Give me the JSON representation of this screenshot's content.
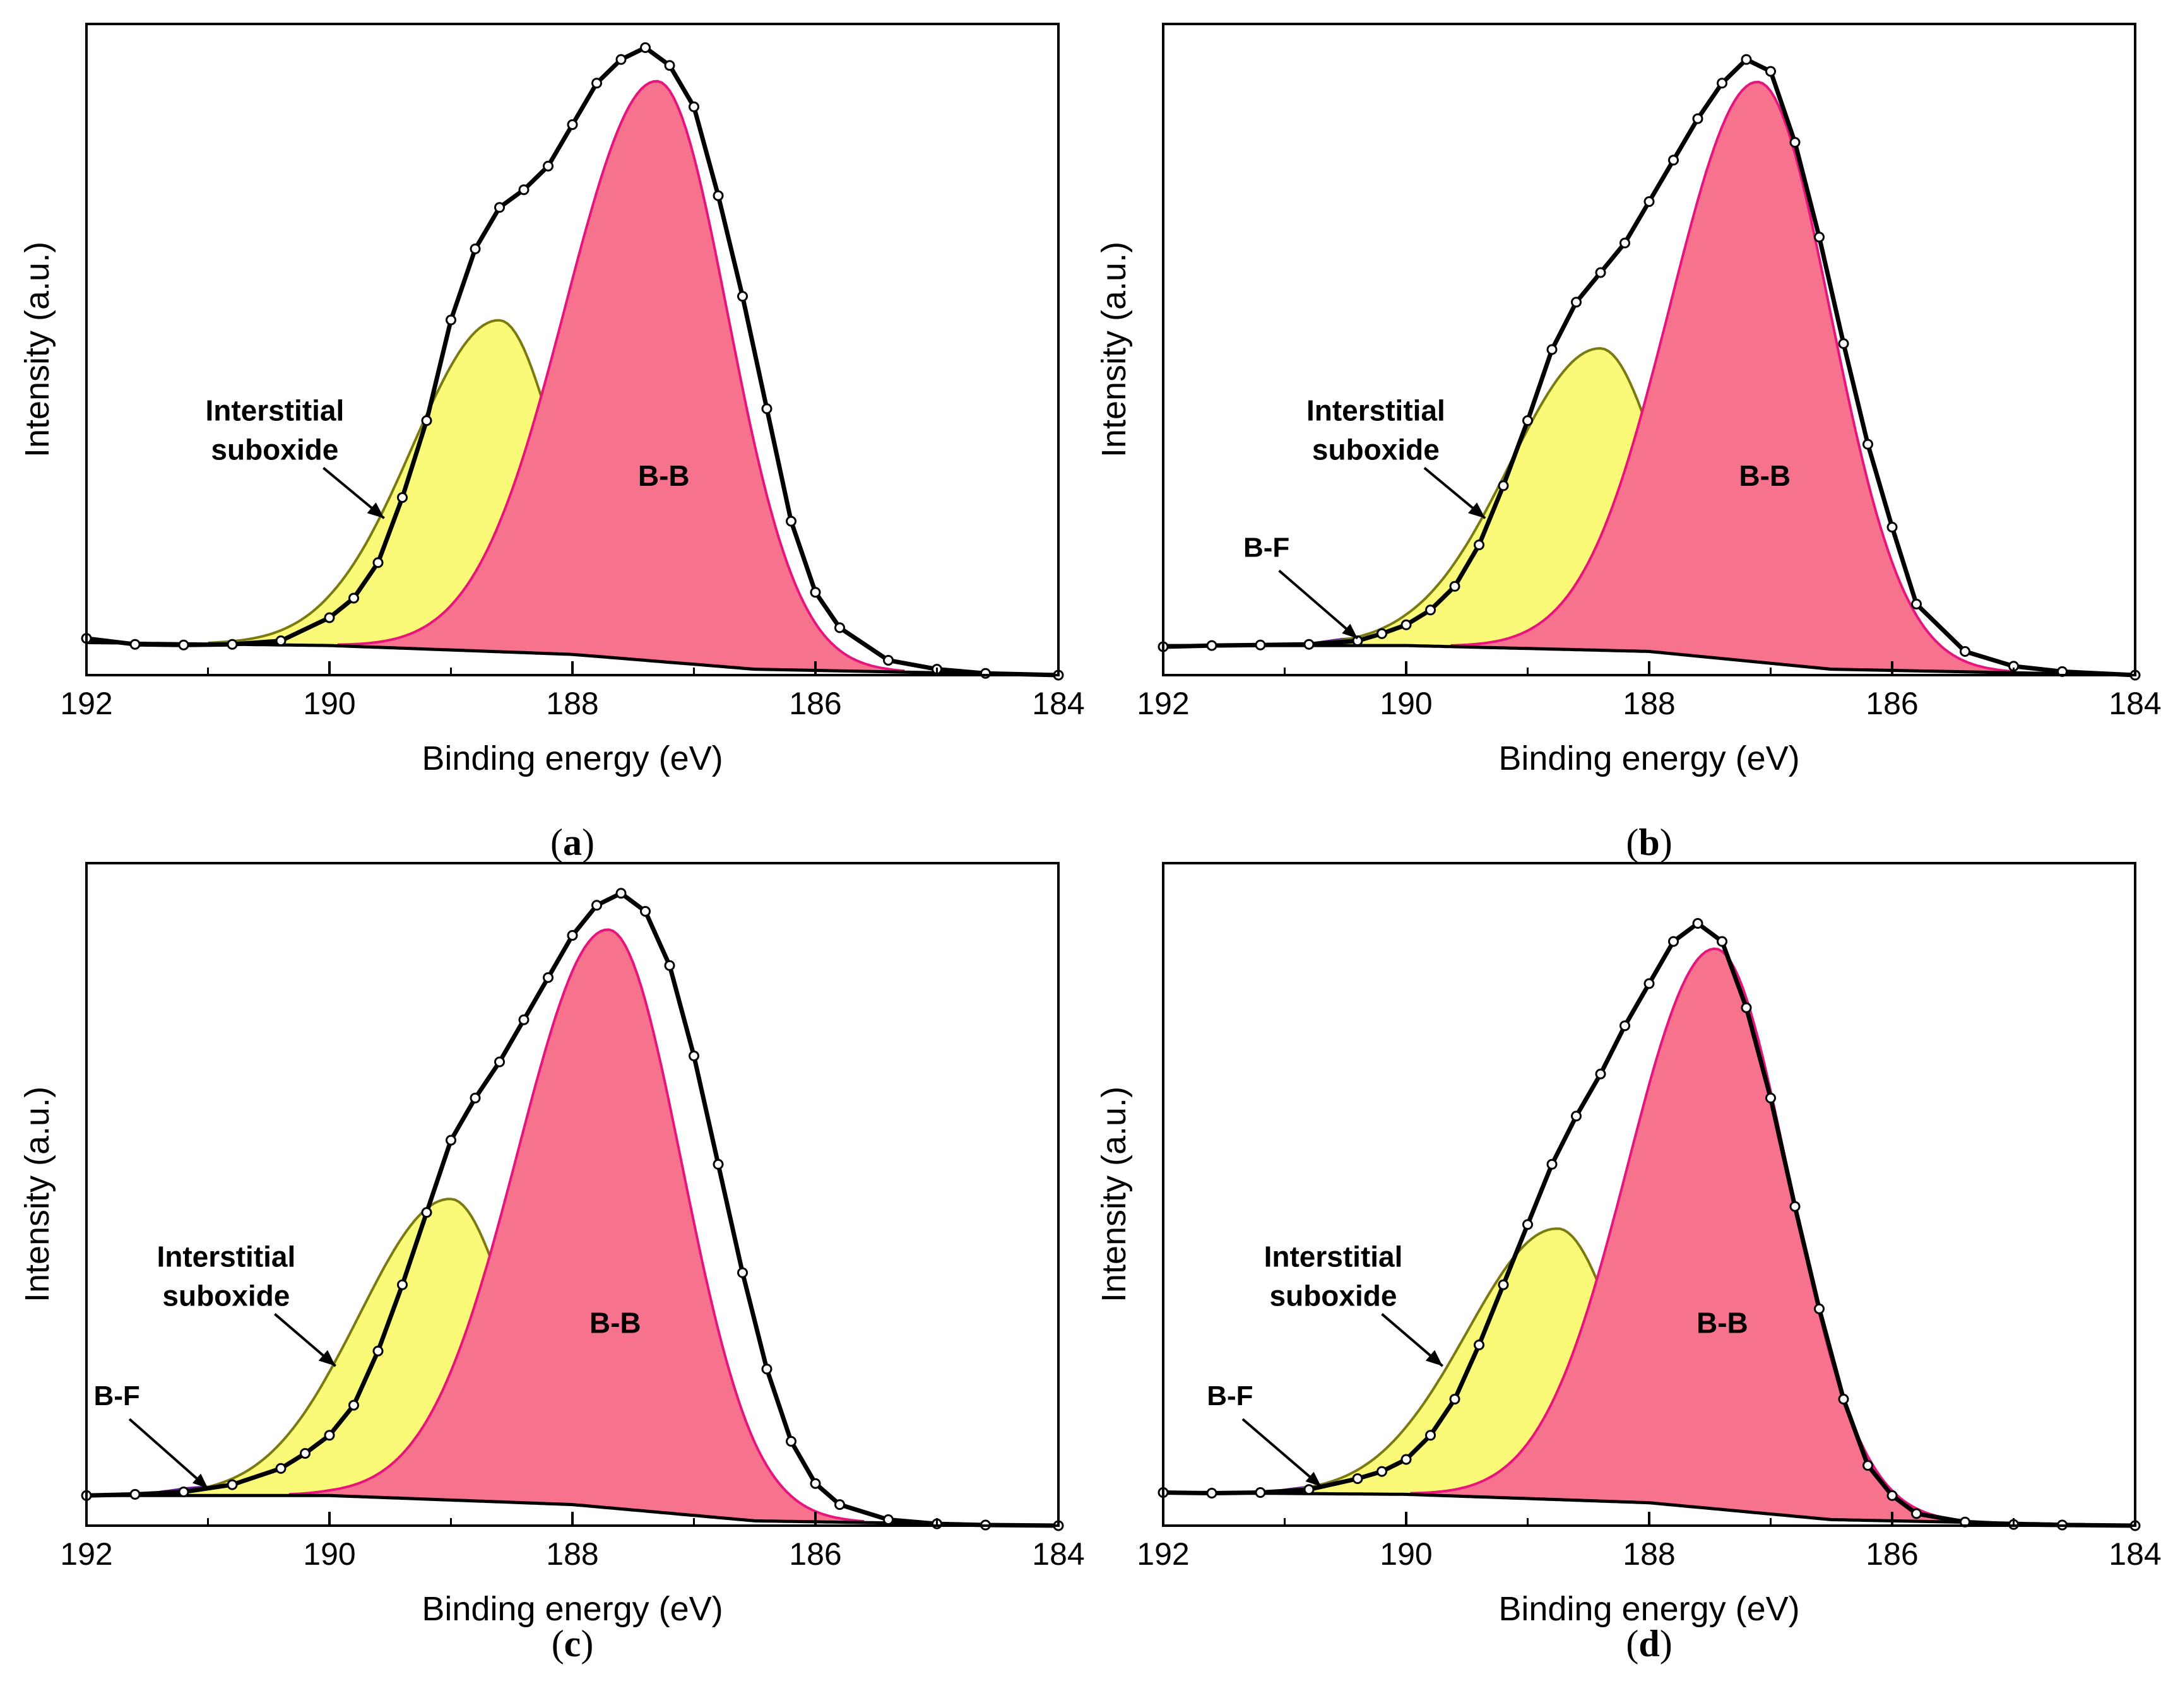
{
  "figure": {
    "colors": {
      "envelope": "#000000",
      "marker_fill": "#ffffff",
      "suboxide_fill": "#fafa78",
      "suboxide_line": "#7a7a10",
      "bb_fill": "#f7728c",
      "bb_line": "#e6157e",
      "bf_fill": "#6a1b9a",
      "axis": "#000000"
    }
  },
  "chart_data": [
    {
      "panel": "(a)",
      "caption_letter": "a",
      "type": "area",
      "title": "",
      "xlabel": "Binding energy (eV)",
      "ylabel": "Intensity (a.u.)",
      "xlim": [
        192,
        184
      ],
      "ylim": [
        0,
        1.1
      ],
      "xticks": [
        "192",
        "190",
        "188",
        "186",
        "184"
      ],
      "annotations": {
        "suboxide_label": [
          "Interstitial",
          "suboxide"
        ],
        "bb_label": "B-B",
        "bf_label": ""
      },
      "background": {
        "x": [
          192,
          190,
          188,
          186.5,
          184
        ],
        "y": [
          0.055,
          0.05,
          0.035,
          0.01,
          0.0
        ]
      },
      "series": [
        {
          "name": "Interstitial suboxide",
          "center": 188.6,
          "amplitude": 0.56,
          "sigma_left": 0.72,
          "sigma_right": 0.48
        },
        {
          "name": "B-B",
          "center": 187.3,
          "amplitude": 0.98,
          "sigma_left": 0.75,
          "sigma_right": 0.58
        }
      ],
      "measured": {
        "x": [
          192.0,
          191.6,
          191.2,
          190.8,
          190.4,
          190.0,
          189.8,
          189.6,
          189.4,
          189.2,
          189.0,
          188.8,
          188.6,
          188.4,
          188.2,
          188.0,
          187.8,
          187.6,
          187.4,
          187.2,
          187.0,
          186.8,
          186.6,
          186.4,
          186.2,
          186.0,
          185.8,
          185.4,
          185.0,
          184.6,
          184.0
        ],
        "y": [
          0.062,
          0.052,
          0.051,
          0.052,
          0.058,
          0.097,
          0.13,
          0.19,
          0.3,
          0.43,
          0.6,
          0.72,
          0.79,
          0.82,
          0.86,
          0.93,
          1.0,
          1.04,
          1.06,
          1.03,
          0.96,
          0.81,
          0.64,
          0.45,
          0.26,
          0.14,
          0.08,
          0.025,
          0.01,
          0.003,
          0.0
        ]
      }
    },
    {
      "panel": "(b)",
      "caption_letter": "b",
      "type": "area",
      "title": "",
      "xlabel": "Binding energy (eV)",
      "ylabel": "Intensity (a.u.)",
      "xlim": [
        192,
        184
      ],
      "ylim": [
        0,
        1.1
      ],
      "xticks": [
        "192",
        "190",
        "188",
        "186",
        "184"
      ],
      "annotations": {
        "suboxide_label": [
          "Interstitial",
          "suboxide"
        ],
        "bb_label": "B-B",
        "bf_label": "B-F"
      },
      "background": {
        "x": [
          192,
          190,
          188,
          186.5,
          184
        ],
        "y": [
          0.05,
          0.05,
          0.04,
          0.01,
          0.0
        ]
      },
      "series": [
        {
          "name": "Interstitial suboxide",
          "center": 188.4,
          "amplitude": 0.51,
          "sigma_left": 0.75,
          "sigma_right": 0.5
        },
        {
          "name": "B-B",
          "center": 187.1,
          "amplitude": 0.98,
          "sigma_left": 0.72,
          "sigma_right": 0.6
        },
        {
          "name": "B-F",
          "center": 190.4,
          "amplitude": 0.012,
          "sigma_left": 0.25,
          "sigma_right": 0.25
        }
      ],
      "measured": {
        "x": [
          192.0,
          191.6,
          191.2,
          190.8,
          190.4,
          190.2,
          190.0,
          189.8,
          189.6,
          189.4,
          189.2,
          189.0,
          188.8,
          188.6,
          188.4,
          188.2,
          188.0,
          187.8,
          187.6,
          187.4,
          187.2,
          187.0,
          186.8,
          186.6,
          186.4,
          186.2,
          186.0,
          185.8,
          185.4,
          185.0,
          184.6,
          184.0
        ],
        "y": [
          0.048,
          0.05,
          0.051,
          0.052,
          0.058,
          0.07,
          0.085,
          0.11,
          0.15,
          0.22,
          0.32,
          0.43,
          0.55,
          0.63,
          0.68,
          0.73,
          0.8,
          0.87,
          0.94,
          1.0,
          1.04,
          1.02,
          0.9,
          0.74,
          0.56,
          0.39,
          0.25,
          0.12,
          0.04,
          0.015,
          0.006,
          0.0
        ]
      }
    },
    {
      "panel": "(c)",
      "caption_letter": "c",
      "type": "area",
      "title": "",
      "xlabel": "Binding energy (eV)",
      "ylabel": "Intensity (a.u.)",
      "xlim": [
        192,
        184
      ],
      "ylim": [
        0,
        1.1
      ],
      "xticks": [
        "192",
        "190",
        "188",
        "186",
        "184"
      ],
      "annotations": {
        "suboxide_label": [
          "Interstitial",
          "suboxide"
        ],
        "bb_label": "B-B",
        "bf_label": "B-F"
      },
      "background": {
        "x": [
          192,
          190,
          188,
          186.5,
          184
        ],
        "y": [
          0.05,
          0.05,
          0.035,
          0.008,
          0.0
        ]
      },
      "series": [
        {
          "name": "Interstitial suboxide",
          "center": 189.0,
          "amplitude": 0.5,
          "sigma_left": 0.75,
          "sigma_right": 0.5
        },
        {
          "name": "B-B",
          "center": 187.7,
          "amplitude": 0.96,
          "sigma_left": 0.75,
          "sigma_right": 0.6
        },
        {
          "name": "B-F",
          "center": 191.0,
          "amplitude": 0.014,
          "sigma_left": 0.3,
          "sigma_right": 0.3
        }
      ],
      "measured": {
        "x": [
          192.0,
          191.6,
          191.2,
          190.8,
          190.4,
          190.2,
          190.0,
          189.8,
          189.6,
          189.4,
          189.2,
          189.0,
          188.8,
          188.6,
          188.4,
          188.2,
          188.0,
          187.8,
          187.6,
          187.4,
          187.2,
          187.0,
          186.8,
          186.6,
          186.4,
          186.2,
          186.0,
          185.8,
          185.4,
          185.0,
          184.6,
          184.0
        ],
        "y": [
          0.05,
          0.052,
          0.056,
          0.068,
          0.095,
          0.12,
          0.15,
          0.2,
          0.29,
          0.4,
          0.52,
          0.64,
          0.71,
          0.77,
          0.84,
          0.91,
          0.98,
          1.03,
          1.05,
          1.02,
          0.93,
          0.78,
          0.6,
          0.42,
          0.26,
          0.14,
          0.07,
          0.035,
          0.01,
          0.003,
          0.001,
          0.0
        ]
      }
    },
    {
      "panel": "(d)",
      "caption_letter": "d",
      "type": "area",
      "title": "",
      "xlabel": "Binding energy (eV)",
      "ylabel": "Intensity (a.u.)",
      "xlim": [
        192,
        184
      ],
      "ylim": [
        0,
        1.1
      ],
      "xticks": [
        "192",
        "190",
        "188",
        "186",
        "184"
      ],
      "annotations": {
        "suboxide_label": [
          "Interstitial",
          "suboxide"
        ],
        "bb_label": "B-B",
        "bf_label": "B-F"
      },
      "background": {
        "x": [
          192,
          190,
          188,
          186.5,
          184
        ],
        "y": [
          0.055,
          0.052,
          0.038,
          0.01,
          0.0
        ]
      },
      "series": [
        {
          "name": "Interstitial suboxide",
          "center": 188.75,
          "amplitude": 0.45,
          "sigma_left": 0.75,
          "sigma_right": 0.5
        },
        {
          "name": "B-B",
          "center": 187.45,
          "amplitude": 0.93,
          "sigma_left": 0.72,
          "sigma_right": 0.6
        },
        {
          "name": "B-F",
          "center": 190.7,
          "amplitude": 0.012,
          "sigma_left": 0.25,
          "sigma_right": 0.25
        }
      ],
      "measured": {
        "x": [
          192.0,
          191.6,
          191.2,
          190.8,
          190.4,
          190.2,
          190.0,
          189.8,
          189.6,
          189.4,
          189.2,
          189.0,
          188.8,
          188.6,
          188.4,
          188.2,
          188.0,
          187.8,
          187.6,
          187.4,
          187.2,
          187.0,
          186.8,
          186.6,
          186.4,
          186.2,
          186.0,
          185.8,
          185.4,
          185.0,
          184.6,
          184.0
        ],
        "y": [
          0.055,
          0.054,
          0.055,
          0.06,
          0.078,
          0.09,
          0.11,
          0.15,
          0.21,
          0.3,
          0.4,
          0.5,
          0.6,
          0.68,
          0.75,
          0.83,
          0.9,
          0.97,
          1.0,
          0.97,
          0.86,
          0.71,
          0.53,
          0.36,
          0.21,
          0.1,
          0.05,
          0.02,
          0.006,
          0.002,
          0.001,
          0.0
        ]
      }
    }
  ]
}
